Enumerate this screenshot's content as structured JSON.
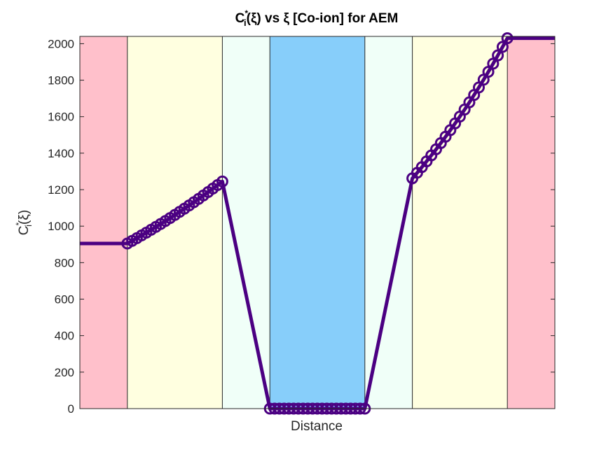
{
  "chart_data": {
    "type": "line",
    "title": {
      "part1": "C",
      "sup": "*",
      "sub": "i",
      "part2": "(ξ) vs ξ [Co-ion] for AEM"
    },
    "xlabel": "Distance",
    "ylabel": {
      "part1": "C",
      "sup": "*",
      "sub": "i",
      "part2": "(ξ)"
    },
    "ylim": [
      0,
      2040
    ],
    "xlim": [
      0,
      10
    ],
    "yticks": [
      0,
      200,
      400,
      600,
      800,
      1000,
      1200,
      1400,
      1600,
      1800,
      2000
    ],
    "grid": false,
    "line_color": "#4B0082",
    "regions": [
      {
        "x0": 0,
        "x1": 1,
        "color": "#FFC0CB"
      },
      {
        "x0": 1,
        "x1": 3,
        "color": "#FFFFE0"
      },
      {
        "x0": 3,
        "x1": 4,
        "color": "#F0FFF8"
      },
      {
        "x0": 4,
        "x1": 6,
        "color": "#87CEFA"
      },
      {
        "x0": 6,
        "x1": 7,
        "color": "#F0FFF8"
      },
      {
        "x0": 7,
        "x1": 9,
        "color": "#FFFFE0"
      },
      {
        "x0": 9,
        "x1": 10,
        "color": "#FFC0CB"
      }
    ],
    "series": [
      {
        "segments": [
          {
            "x": [
              0,
              1
            ],
            "y": [
              905,
              905
            ],
            "markers": false
          },
          {
            "x0": 1,
            "x1": 3,
            "n": 21,
            "y0": 905,
            "y1": 1245,
            "curve": "exp",
            "markers": true
          },
          {
            "x": [
              3,
              4
            ],
            "y": [
              1245,
              0
            ],
            "markers": false
          },
          {
            "x0": 4,
            "x1": 6,
            "n": 21,
            "y0": 0,
            "y1": 0,
            "curve": "lin",
            "markers": true
          },
          {
            "x": [
              6,
              7
            ],
            "y": [
              0,
              1262
            ],
            "markers": false
          },
          {
            "x0": 7,
            "x1": 9,
            "n": 21,
            "y0": 1262,
            "y1": 2030,
            "curve": "exp",
            "markers": true
          },
          {
            "x": [
              9,
              10
            ],
            "y": [
              2030,
              2030
            ],
            "markers": false
          }
        ]
      }
    ]
  }
}
